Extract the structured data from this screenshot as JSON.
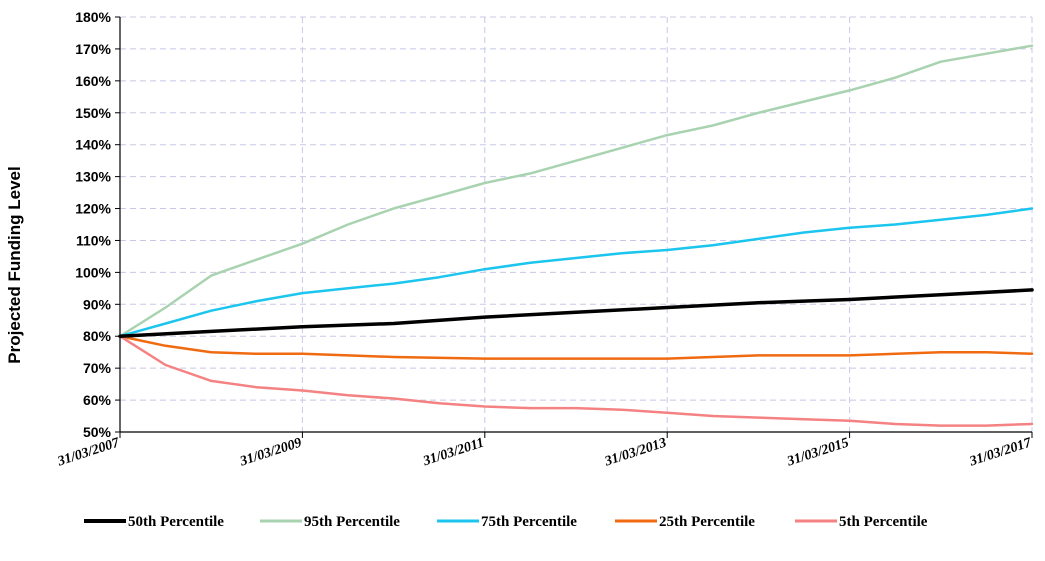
{
  "chart_data": {
    "type": "line",
    "title": "",
    "xlabel": "",
    "ylabel": "Projected Funding Level",
    "x_tick_labels": [
      "31/03/2007",
      "31/03/2009",
      "31/03/2011",
      "31/03/2013",
      "31/03/2015",
      "31/03/2017"
    ],
    "y_tick_labels": [
      "50%",
      "60%",
      "70%",
      "80%",
      "90%",
      "100%",
      "110%",
      "120%",
      "130%",
      "140%",
      "150%",
      "160%",
      "170%",
      "180%"
    ],
    "xlim": [
      2007,
      2017
    ],
    "ylim": [
      50,
      180
    ],
    "grid": true,
    "legend_position": "bottom",
    "series": [
      {
        "name": "50th Percentile",
        "color": "#000000",
        "x": [
          2007,
          2008,
          2009,
          2010,
          2011,
          2012,
          2013,
          2014,
          2015,
          2016,
          2017
        ],
        "y": [
          80,
          81.5,
          83,
          84,
          86,
          87.5,
          89,
          90.5,
          91.5,
          93,
          94.5
        ]
      },
      {
        "name": "95th Percentile",
        "color": "#a9d3b0",
        "x": [
          2007,
          2007.5,
          2008,
          2008.5,
          2009,
          2009.5,
          2010,
          2010.5,
          2011,
          2011.5,
          2012,
          2012.5,
          2013,
          2013.5,
          2014,
          2014.5,
          2015,
          2015.5,
          2016,
          2016.5,
          2017
        ],
        "y": [
          80,
          89,
          99,
          104,
          109,
          115,
          120,
          124,
          128,
          131,
          135,
          139,
          143,
          146,
          150,
          153.5,
          157,
          161,
          166,
          168.5,
          171
        ]
      },
      {
        "name": "75th Percentile",
        "color": "#1cc5ee",
        "x": [
          2007,
          2007.5,
          2008,
          2008.5,
          2009,
          2009.5,
          2010,
          2010.5,
          2011,
          2011.5,
          2012,
          2012.5,
          2013,
          2013.5,
          2014,
          2014.5,
          2015,
          2015.5,
          2016,
          2016.5,
          2017
        ],
        "y": [
          80,
          84,
          88,
          91,
          93.5,
          95,
          96.5,
          98.5,
          101,
          103,
          104.5,
          106,
          107,
          108.5,
          110.5,
          112.5,
          114,
          115,
          116.5,
          118,
          120
        ]
      },
      {
        "name": "25th Percentile",
        "color": "#f06a10",
        "x": [
          2007,
          2007.5,
          2008,
          2008.5,
          2009,
          2009.5,
          2010,
          2011,
          2012,
          2013,
          2013.5,
          2014,
          2015,
          2016,
          2016.5,
          2017
        ],
        "y": [
          80,
          77,
          75,
          74.5,
          74.5,
          74,
          73.5,
          73,
          73,
          73,
          73.5,
          74,
          74,
          75,
          75,
          74.5
        ]
      },
      {
        "name": "5th Percentile",
        "color": "#f58282",
        "x": [
          2007,
          2007.5,
          2008,
          2008.5,
          2009,
          2009.5,
          2010,
          2010.5,
          2011,
          2011.5,
          2012,
          2012.5,
          2013,
          2013.5,
          2014,
          2014.5,
          2015,
          2015.5,
          2016,
          2016.5,
          2017
        ],
        "y": [
          80,
          71,
          66,
          64,
          63,
          61.5,
          60.5,
          59,
          58,
          57.5,
          57.5,
          57,
          56,
          55,
          54.5,
          54,
          53.5,
          52.5,
          52,
          52,
          52.5
        ]
      }
    ]
  }
}
